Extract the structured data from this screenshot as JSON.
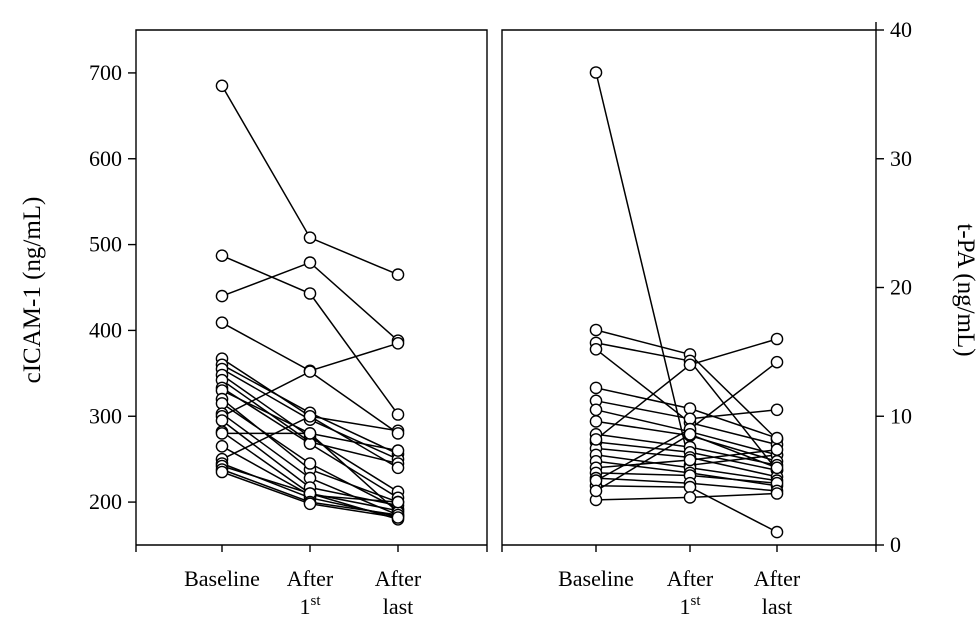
{
  "chart_data": [
    {
      "type": "line",
      "panel": "left",
      "ylabel": "cICAM-1 (ng/mL)",
      "ylim": [
        150,
        750
      ],
      "y_ticks": [
        200,
        300,
        400,
        500,
        600,
        700
      ],
      "y_axis_side": "left",
      "categories": [
        {
          "line1": "Baseline",
          "line2": "",
          "sup": ""
        },
        {
          "line1": "After",
          "line2": "1",
          "sup": "st"
        },
        {
          "line1": "After",
          "line2": "last",
          "sup": ""
        }
      ],
      "grid": false,
      "series": [
        {
          "values": [
            685,
            508,
            465
          ]
        },
        {
          "values": [
            487,
            443,
            302
          ]
        },
        {
          "values": [
            440,
            479,
            388
          ]
        },
        {
          "values": [
            409,
            353,
            385
          ]
        },
        {
          "values": [
            367,
            300,
            283
          ]
        },
        {
          "values": [
            360,
            304,
            256
          ]
        },
        {
          "values": [
            355,
            296,
            250
          ]
        },
        {
          "values": [
            348,
            276,
            212
          ]
        },
        {
          "values": [
            342,
            270,
            245
          ]
        },
        {
          "values": [
            333,
            268,
            205
          ]
        },
        {
          "values": [
            330,
            280,
            260
          ]
        },
        {
          "values": [
            320,
            238,
            200
          ]
        },
        {
          "values": [
            315,
            245,
            192
          ]
        },
        {
          "values": [
            303,
            228,
            185
          ]
        },
        {
          "values": [
            300,
            352,
            280
          ]
        },
        {
          "values": [
            295,
            217,
            196
          ]
        },
        {
          "values": [
            282,
            210,
            190
          ]
        },
        {
          "values": [
            280,
            280,
            188
          ]
        },
        {
          "values": [
            265,
            208,
            200
          ]
        },
        {
          "values": [
            250,
            300,
            240
          ]
        },
        {
          "values": [
            245,
            205,
            183
          ]
        },
        {
          "values": [
            242,
            210,
            180
          ]
        },
        {
          "values": [
            238,
            200,
            185
          ]
        },
        {
          "values": [
            235,
            198,
            182
          ]
        }
      ]
    },
    {
      "type": "line",
      "panel": "right",
      "ylabel": "t-PA (ng/mL)",
      "ylim": [
        0,
        40
      ],
      "y_ticks": [
        0,
        10,
        20,
        30,
        40
      ],
      "y_axis_side": "right",
      "categories": [
        {
          "line1": "Baseline",
          "line2": "",
          "sup": ""
        },
        {
          "line1": "After",
          "line2": "1",
          "sup": "st"
        },
        {
          "line1": "After",
          "line2": "last",
          "sup": ""
        }
      ],
      "grid": false,
      "series": [
        {
          "values": [
            36.7,
            6.2,
            7.0
          ]
        },
        {
          "values": [
            16.7,
            14.8,
            8.2
          ]
        },
        {
          "values": [
            15.7,
            14.3,
            5.8
          ]
        },
        {
          "values": [
            15.2,
            9.5,
            7.8
          ]
        },
        {
          "values": [
            12.2,
            10.6,
            8.3
          ]
        },
        {
          "values": [
            11.2,
            9.8,
            10.5
          ]
        },
        {
          "values": [
            10.5,
            8.8,
            7.0
          ]
        },
        {
          "values": [
            9.6,
            8.5,
            6.5
          ]
        },
        {
          "values": [
            8.6,
            7.6,
            6.2
          ]
        },
        {
          "values": [
            8.0,
            7.2,
            5.8
          ]
        },
        {
          "values": [
            7.5,
            6.8,
            5.3
          ]
        },
        {
          "values": [
            7.0,
            6.0,
            5.0
          ]
        },
        {
          "values": [
            6.5,
            5.6,
            4.6
          ]
        },
        {
          "values": [
            6.0,
            6.6,
            7.4
          ]
        },
        {
          "values": [
            5.6,
            5.4,
            4.8
          ]
        },
        {
          "values": [
            5.2,
            4.8,
            4.2
          ]
        },
        {
          "values": [
            4.6,
            4.5,
            1.0
          ]
        },
        {
          "values": [
            3.5,
            3.7,
            4.0
          ]
        },
        {
          "values": [
            8.2,
            14.0,
            16.0
          ]
        },
        {
          "values": [
            5.0,
            9.0,
            14.2
          ]
        },
        {
          "values": [
            4.2,
            8.6,
            6.0
          ]
        }
      ]
    }
  ]
}
